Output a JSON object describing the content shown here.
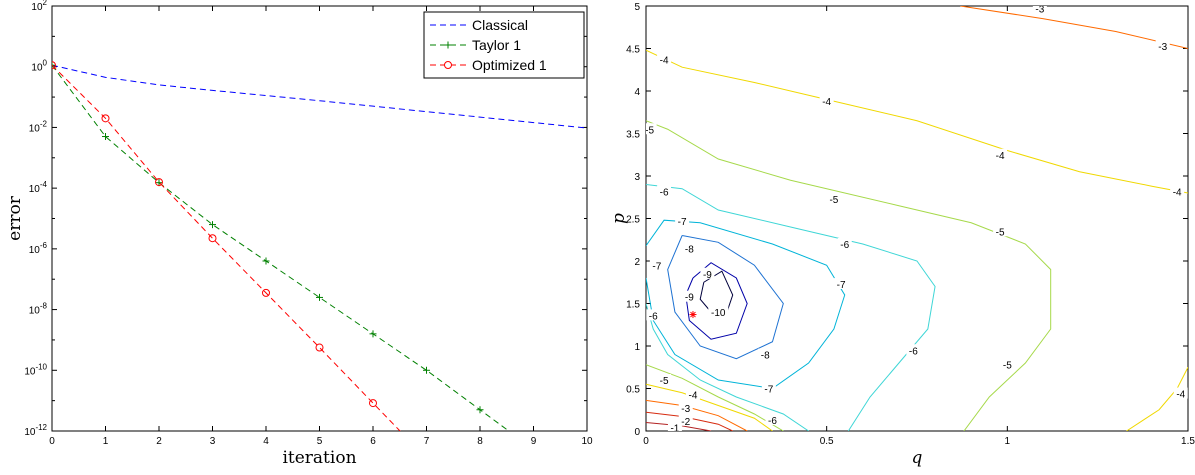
{
  "chart_data": [
    {
      "type": "line",
      "xlabel": "iteration",
      "ylabel": "error",
      "xlim": [
        0,
        10
      ],
      "ylim_log10": [
        -12,
        2
      ],
      "yscale": "log",
      "x_ticks": [
        "0",
        "1",
        "2",
        "3",
        "4",
        "5",
        "6",
        "7",
        "8",
        "9",
        "10"
      ],
      "y_ticks": [
        {
          "base": "10",
          "exp": "2"
        },
        {
          "base": "10",
          "exp": "0"
        },
        {
          "base": "10",
          "exp": "-2"
        },
        {
          "base": "10",
          "exp": "-4"
        },
        {
          "base": "10",
          "exp": "-6"
        },
        {
          "base": "10",
          "exp": "-8"
        },
        {
          "base": "10",
          "exp": "-10"
        },
        {
          "base": "10",
          "exp": "-12"
        }
      ],
      "legend_position": "top-right",
      "series": [
        {
          "name": "Classical",
          "color": "#0000ff",
          "marker": "none",
          "x": [
            0,
            1,
            2,
            3,
            4,
            5,
            6,
            7,
            8,
            9,
            10
          ],
          "log10_y": [
            0.05,
            -0.35,
            -0.6,
            -0.78,
            -0.95,
            -1.12,
            -1.3,
            -1.48,
            -1.66,
            -1.84,
            -2.02
          ]
        },
        {
          "name": "Taylor 1",
          "color": "#008000",
          "marker": "plus",
          "x": [
            0,
            1,
            2,
            3,
            4,
            5,
            6,
            7,
            8,
            9
          ],
          "log10_y": [
            0.05,
            -2.3,
            -3.82,
            -5.2,
            -6.4,
            -7.6,
            -8.8,
            -10.0,
            -11.3,
            -12.6
          ]
        },
        {
          "name": "Optimized 1",
          "color": "#ff0000",
          "marker": "circle",
          "x": [
            0,
            1,
            2,
            3,
            4,
            5,
            6,
            7
          ],
          "log10_y": [
            0.05,
            -1.7,
            -3.8,
            -5.65,
            -7.45,
            -9.25,
            -11.08,
            -12.9
          ]
        }
      ]
    },
    {
      "type": "contour",
      "xlabel": "q",
      "ylabel": "p",
      "xlim": [
        0,
        1.5
      ],
      "ylim": [
        0,
        5
      ],
      "x_ticks": [
        "0",
        "0.5",
        "1",
        "1.5"
      ],
      "y_ticks": [
        "0",
        "0.5",
        "1",
        "1.5",
        "2",
        "2.5",
        "3",
        "3.5",
        "4",
        "4.5",
        "5"
      ],
      "optimum_marker": {
        "q": 0.13,
        "p": 1.37,
        "color": "#ff0000",
        "symbol": "*"
      },
      "levels": [
        {
          "level": -1,
          "color": "#b22222",
          "labels": [
            {
              "text": "-1",
              "q": 0.08,
              "p": 0.04
            }
          ],
          "paths": [
            [
              [
                0.0,
                0.1
              ],
              [
                0.1,
                0.06
              ],
              [
                0.18,
                0.0
              ]
            ]
          ]
        },
        {
          "level": -2,
          "color": "#d62b10",
          "labels": [
            {
              "text": "-2",
              "q": 0.11,
              "p": 0.12
            }
          ],
          "paths": [
            [
              [
                0.0,
                0.22
              ],
              [
                0.1,
                0.17
              ],
              [
                0.2,
                0.08
              ],
              [
                0.24,
                0.0
              ]
            ]
          ]
        },
        {
          "level": -3,
          "color": "#ff6a00",
          "labels": [
            {
              "text": "-3",
              "q": 0.11,
              "p": 0.27
            },
            {
              "text": "-3",
              "q": 1.09,
              "p": 4.97
            },
            {
              "text": "-3",
              "q": 1.43,
              "p": 4.53
            }
          ],
          "paths": [
            [
              [
                0.0,
                0.36
              ],
              [
                0.1,
                0.3
              ],
              [
                0.2,
                0.18
              ],
              [
                0.28,
                0.0
              ]
            ],
            [
              [
                0.87,
                5.0
              ],
              [
                1.1,
                4.85
              ],
              [
                1.3,
                4.7
              ],
              [
                1.5,
                4.5
              ]
            ]
          ]
        },
        {
          "level": -4,
          "color": "#f0d800",
          "labels": [
            {
              "text": "-4",
              "q": 0.05,
              "p": 4.37
            },
            {
              "text": "-4",
              "q": 0.5,
              "p": 3.88
            },
            {
              "text": "-4",
              "q": 0.98,
              "p": 3.25
            },
            {
              "text": "-4",
              "q": 1.47,
              "p": 2.82
            },
            {
              "text": "-4",
              "q": 0.13,
              "p": 0.43
            },
            {
              "text": "-4",
              "q": 1.48,
              "p": 0.44
            }
          ],
          "paths": [
            [
              [
                0.0,
                4.48
              ],
              [
                0.1,
                4.28
              ],
              [
                0.3,
                4.1
              ],
              [
                0.5,
                3.9
              ],
              [
                0.75,
                3.65
              ],
              [
                1.0,
                3.3
              ],
              [
                1.2,
                3.05
              ],
              [
                1.4,
                2.88
              ],
              [
                1.5,
                2.8
              ]
            ],
            [
              [
                0.0,
                0.55
              ],
              [
                0.1,
                0.45
              ],
              [
                0.2,
                0.3
              ],
              [
                0.3,
                0.15
              ],
              [
                0.35,
                0.0
              ]
            ],
            [
              [
                1.33,
                0.0
              ],
              [
                1.42,
                0.25
              ],
              [
                1.47,
                0.5
              ],
              [
                1.5,
                0.75
              ]
            ]
          ]
        },
        {
          "level": -5,
          "color": "#a6d94a",
          "labels": [
            {
              "text": "-5",
              "q": 0.01,
              "p": 3.55
            },
            {
              "text": "-5",
              "q": 0.52,
              "p": 2.73
            },
            {
              "text": "-5",
              "q": 0.98,
              "p": 2.35
            },
            {
              "text": "-5",
              "q": 0.05,
              "p": 0.6
            },
            {
              "text": "-5",
              "q": 1.0,
              "p": 0.78
            }
          ],
          "paths": [
            [
              [
                0.0,
                3.65
              ],
              [
                0.06,
                3.55
              ],
              [
                0.2,
                3.2
              ],
              [
                0.4,
                2.95
              ],
              [
                0.7,
                2.65
              ],
              [
                0.9,
                2.45
              ],
              [
                1.05,
                2.2
              ],
              [
                1.12,
                1.9
              ],
              [
                1.12,
                1.2
              ],
              [
                1.05,
                0.8
              ],
              [
                0.95,
                0.4
              ],
              [
                0.88,
                0.0
              ]
            ],
            [
              [
                0.0,
                0.78
              ],
              [
                0.1,
                0.62
              ],
              [
                0.2,
                0.4
              ],
              [
                0.3,
                0.2
              ],
              [
                0.38,
                0.0
              ]
            ]
          ]
        },
        {
          "level": -6,
          "color": "#3fd6d6",
          "labels": [
            {
              "text": "-6",
              "q": 0.05,
              "p": 2.82
            },
            {
              "text": "-6",
              "q": 0.55,
              "p": 2.2
            },
            {
              "text": "-6",
              "q": 0.74,
              "p": 0.95
            },
            {
              "text": "-6",
              "q": 0.35,
              "p": 0.13
            },
            {
              "text": "-6",
              "q": 0.02,
              "p": 1.36
            }
          ],
          "paths": [
            [
              [
                0.0,
                2.9
              ],
              [
                0.1,
                2.85
              ],
              [
                0.2,
                2.6
              ],
              [
                0.4,
                2.4
              ],
              [
                0.6,
                2.2
              ],
              [
                0.75,
                2.0
              ],
              [
                0.8,
                1.7
              ],
              [
                0.78,
                1.2
              ],
              [
                0.7,
                0.8
              ],
              [
                0.62,
                0.4
              ],
              [
                0.56,
                0.0
              ]
            ],
            [
              [
                0.0,
                1.5
              ],
              [
                0.02,
                1.2
              ],
              [
                0.06,
                0.9
              ],
              [
                0.15,
                0.6
              ],
              [
                0.25,
                0.4
              ],
              [
                0.38,
                0.2
              ],
              [
                0.45,
                0.0
              ]
            ]
          ]
        },
        {
          "level": -7,
          "color": "#00b4d8",
          "labels": [
            {
              "text": "-7",
              "q": 0.1,
              "p": 2.47
            },
            {
              "text": "-7",
              "q": 0.03,
              "p": 1.95
            },
            {
              "text": "-7",
              "q": 0.54,
              "p": 1.73
            },
            {
              "text": "-7",
              "q": 0.34,
              "p": 0.5
            }
          ],
          "paths": [
            [
              [
                0.0,
                2.18
              ],
              [
                0.05,
                2.48
              ],
              [
                0.15,
                2.45
              ],
              [
                0.35,
                2.2
              ],
              [
                0.5,
                1.95
              ],
              [
                0.55,
                1.6
              ],
              [
                0.52,
                1.2
              ],
              [
                0.45,
                0.8
              ],
              [
                0.35,
                0.5
              ],
              [
                0.2,
                0.6
              ],
              [
                0.08,
                0.9
              ],
              [
                0.02,
                1.3
              ],
              [
                0.0,
                1.8
              ]
            ]
          ]
        },
        {
          "level": -8,
          "color": "#1e72d2",
          "labels": [
            {
              "text": "-8",
              "q": 0.12,
              "p": 2.15
            },
            {
              "text": "-8",
              "q": 0.33,
              "p": 0.9
            }
          ],
          "paths": [
            [
              [
                0.1,
                2.3
              ],
              [
                0.2,
                2.22
              ],
              [
                0.3,
                1.95
              ],
              [
                0.38,
                1.5
              ],
              [
                0.35,
                1.05
              ],
              [
                0.25,
                0.85
              ],
              [
                0.15,
                1.0
              ],
              [
                0.08,
                1.4
              ],
              [
                0.06,
                1.9
              ],
              [
                0.1,
                2.3
              ]
            ]
          ]
        },
        {
          "level": -9,
          "color": "#0000a8",
          "labels": [
            {
              "text": "-9",
              "q": 0.17,
              "p": 1.85
            },
            {
              "text": "-9",
              "q": 0.12,
              "p": 1.58
            }
          ],
          "paths": [
            [
              [
                0.13,
                1.8
              ],
              [
                0.18,
                1.98
              ],
              [
                0.25,
                1.8
              ],
              [
                0.28,
                1.5
              ],
              [
                0.25,
                1.15
              ],
              [
                0.18,
                1.08
              ],
              [
                0.12,
                1.3
              ],
              [
                0.11,
                1.6
              ],
              [
                0.13,
                1.8
              ]
            ]
          ]
        },
        {
          "level": -10,
          "color": "#00003c",
          "labels": [
            {
              "text": "-10",
              "q": 0.2,
              "p": 1.4
            }
          ],
          "paths": [
            [
              [
                0.16,
                1.75
              ],
              [
                0.21,
                1.88
              ],
              [
                0.24,
                1.6
              ],
              [
                0.22,
                1.35
              ],
              [
                0.18,
                1.4
              ],
              [
                0.15,
                1.55
              ],
              [
                0.16,
                1.75
              ]
            ]
          ]
        }
      ]
    }
  ]
}
